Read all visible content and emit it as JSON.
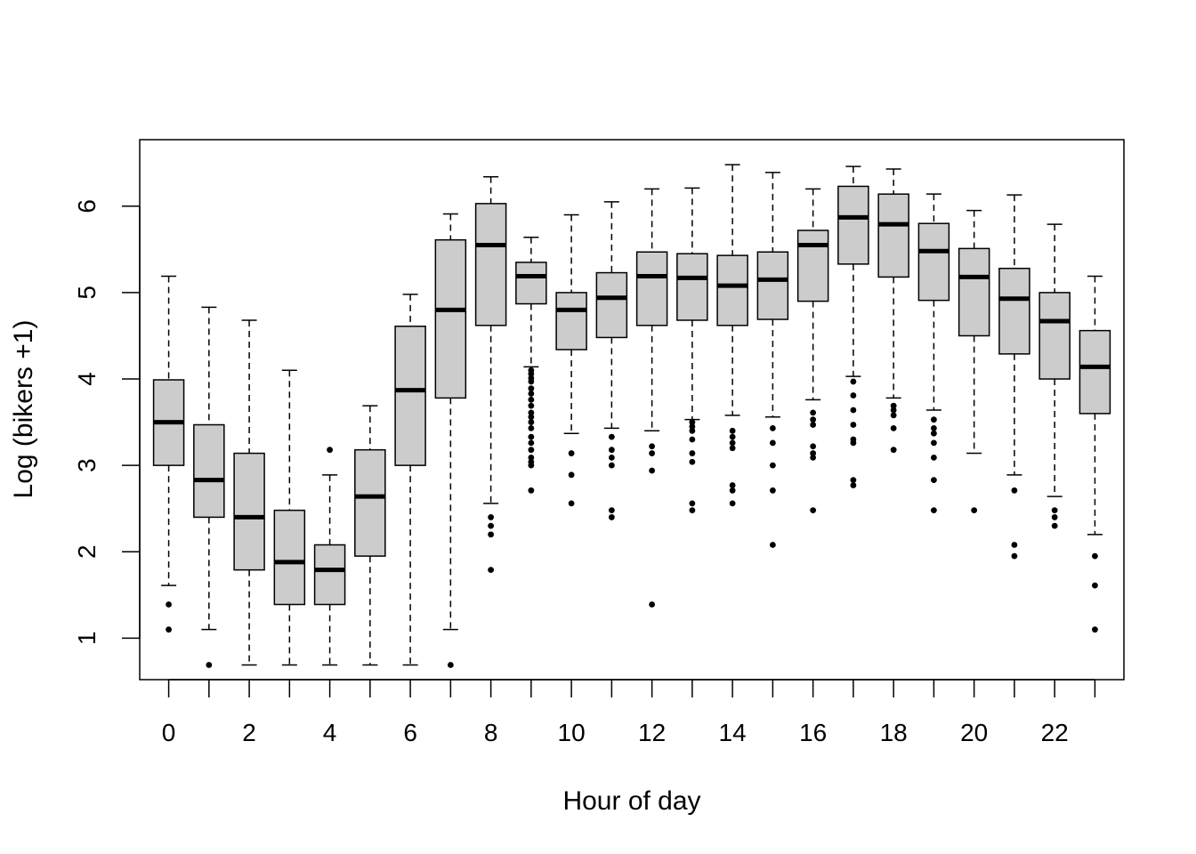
{
  "chart_data": {
    "type": "boxplot",
    "title": "",
    "xlabel": "Hour of day",
    "ylabel": "Log (bikers +1)",
    "ylim": [
      0.52,
      6.77
    ],
    "y_ticks": [
      1,
      2,
      3,
      4,
      5,
      6
    ],
    "x_ticks": [
      0,
      2,
      4,
      6,
      8,
      10,
      12,
      14,
      16,
      18,
      20,
      22
    ],
    "box_fill": "#cccccc",
    "categories": [
      0,
      1,
      2,
      3,
      4,
      5,
      6,
      7,
      8,
      9,
      10,
      11,
      12,
      13,
      14,
      15,
      16,
      17,
      18,
      19,
      20,
      21,
      22,
      23
    ],
    "boxes": [
      {
        "hour": 0,
        "low": 1.61,
        "q1": 3.0,
        "median": 3.5,
        "q3": 3.99,
        "high": 5.19,
        "outliers": [
          1.39,
          1.1
        ]
      },
      {
        "hour": 1,
        "low": 1.1,
        "q1": 2.4,
        "median": 2.83,
        "q3": 3.47,
        "high": 4.83,
        "outliers": [
          0.69
        ]
      },
      {
        "hour": 2,
        "low": 0.69,
        "q1": 1.79,
        "median": 2.4,
        "q3": 3.14,
        "high": 4.68,
        "outliers": []
      },
      {
        "hour": 3,
        "low": 0.69,
        "q1": 1.39,
        "median": 1.88,
        "q3": 2.48,
        "high": 4.1,
        "outliers": []
      },
      {
        "hour": 4,
        "low": 0.69,
        "q1": 1.39,
        "median": 1.79,
        "q3": 2.08,
        "high": 2.89,
        "outliers": [
          3.18
        ]
      },
      {
        "hour": 5,
        "low": 0.69,
        "q1": 1.95,
        "median": 2.64,
        "q3": 3.18,
        "high": 3.69,
        "outliers": []
      },
      {
        "hour": 6,
        "low": 0.69,
        "q1": 3.0,
        "median": 3.87,
        "q3": 4.61,
        "high": 4.98,
        "outliers": []
      },
      {
        "hour": 7,
        "low": 1.1,
        "q1": 3.78,
        "median": 4.8,
        "q3": 5.61,
        "high": 5.91,
        "outliers": [
          0.69
        ]
      },
      {
        "hour": 8,
        "low": 2.56,
        "q1": 4.62,
        "median": 5.55,
        "q3": 6.03,
        "high": 6.34,
        "outliers": [
          2.4,
          2.3,
          2.2,
          1.79
        ]
      },
      {
        "hour": 9,
        "low": 4.14,
        "q1": 4.87,
        "median": 5.19,
        "q3": 5.35,
        "high": 5.64,
        "outliers": [
          4.1,
          4.06,
          4.01,
          3.97,
          3.89,
          3.83,
          3.76,
          3.69,
          3.61,
          3.56,
          3.5,
          3.43,
          3.33,
          3.26,
          3.18,
          3.09,
          3.04,
          3.0,
          2.71
        ]
      },
      {
        "hour": 10,
        "low": 3.37,
        "q1": 4.34,
        "median": 4.8,
        "q3": 5.0,
        "high": 5.9,
        "outliers": [
          3.14,
          2.89,
          2.56
        ]
      },
      {
        "hour": 11,
        "low": 3.43,
        "q1": 4.48,
        "median": 4.94,
        "q3": 5.23,
        "high": 6.05,
        "outliers": [
          3.33,
          3.18,
          3.09,
          3.0,
          2.48,
          2.4
        ]
      },
      {
        "hour": 12,
        "low": 3.4,
        "q1": 4.62,
        "median": 5.19,
        "q3": 5.47,
        "high": 6.2,
        "outliers": [
          3.22,
          3.14,
          2.94,
          1.39
        ]
      },
      {
        "hour": 13,
        "low": 3.53,
        "q1": 4.68,
        "median": 5.17,
        "q3": 5.45,
        "high": 6.21,
        "outliers": [
          3.5,
          3.45,
          3.4,
          3.3,
          3.14,
          3.04,
          2.56,
          2.48
        ]
      },
      {
        "hour": 14,
        "low": 3.58,
        "q1": 4.62,
        "median": 5.08,
        "q3": 5.43,
        "high": 6.48,
        "outliers": [
          3.4,
          3.33,
          3.26,
          3.2,
          2.77,
          2.71,
          2.56
        ]
      },
      {
        "hour": 15,
        "low": 3.56,
        "q1": 4.69,
        "median": 5.15,
        "q3": 5.47,
        "high": 6.39,
        "outliers": [
          3.43,
          3.26,
          3.0,
          2.71,
          2.08
        ]
      },
      {
        "hour": 16,
        "low": 3.76,
        "q1": 4.9,
        "median": 5.55,
        "q3": 5.72,
        "high": 6.2,
        "outliers": [
          3.61,
          3.53,
          3.47,
          3.22,
          3.14,
          3.09,
          2.48
        ]
      },
      {
        "hour": 17,
        "low": 4.03,
        "q1": 5.33,
        "median": 5.87,
        "q3": 6.23,
        "high": 6.46,
        "outliers": [
          3.97,
          3.81,
          3.64,
          3.47,
          3.3,
          3.26,
          2.83,
          2.77
        ]
      },
      {
        "hour": 18,
        "low": 3.78,
        "q1": 5.18,
        "median": 5.79,
        "q3": 6.14,
        "high": 6.43,
        "outliers": [
          3.69,
          3.64,
          3.58,
          3.43,
          3.18
        ]
      },
      {
        "hour": 19,
        "low": 3.64,
        "q1": 4.91,
        "median": 5.48,
        "q3": 5.8,
        "high": 6.14,
        "outliers": [
          3.53,
          3.43,
          3.37,
          3.26,
          3.09,
          2.83,
          2.48
        ]
      },
      {
        "hour": 20,
        "low": 3.14,
        "q1": 4.5,
        "median": 5.18,
        "q3": 5.51,
        "high": 5.95,
        "outliers": [
          2.48
        ]
      },
      {
        "hour": 21,
        "low": 2.89,
        "q1": 4.29,
        "median": 4.93,
        "q3": 5.28,
        "high": 6.13,
        "outliers": [
          2.71,
          2.08,
          1.95
        ]
      },
      {
        "hour": 22,
        "low": 2.64,
        "q1": 4.0,
        "median": 4.67,
        "q3": 5.0,
        "high": 5.79,
        "outliers": [
          2.48,
          2.4,
          2.3
        ]
      },
      {
        "hour": 23,
        "low": 2.2,
        "q1": 3.6,
        "median": 4.14,
        "q3": 4.56,
        "high": 5.19,
        "outliers": [
          1.95,
          1.61,
          1.1
        ]
      }
    ]
  }
}
